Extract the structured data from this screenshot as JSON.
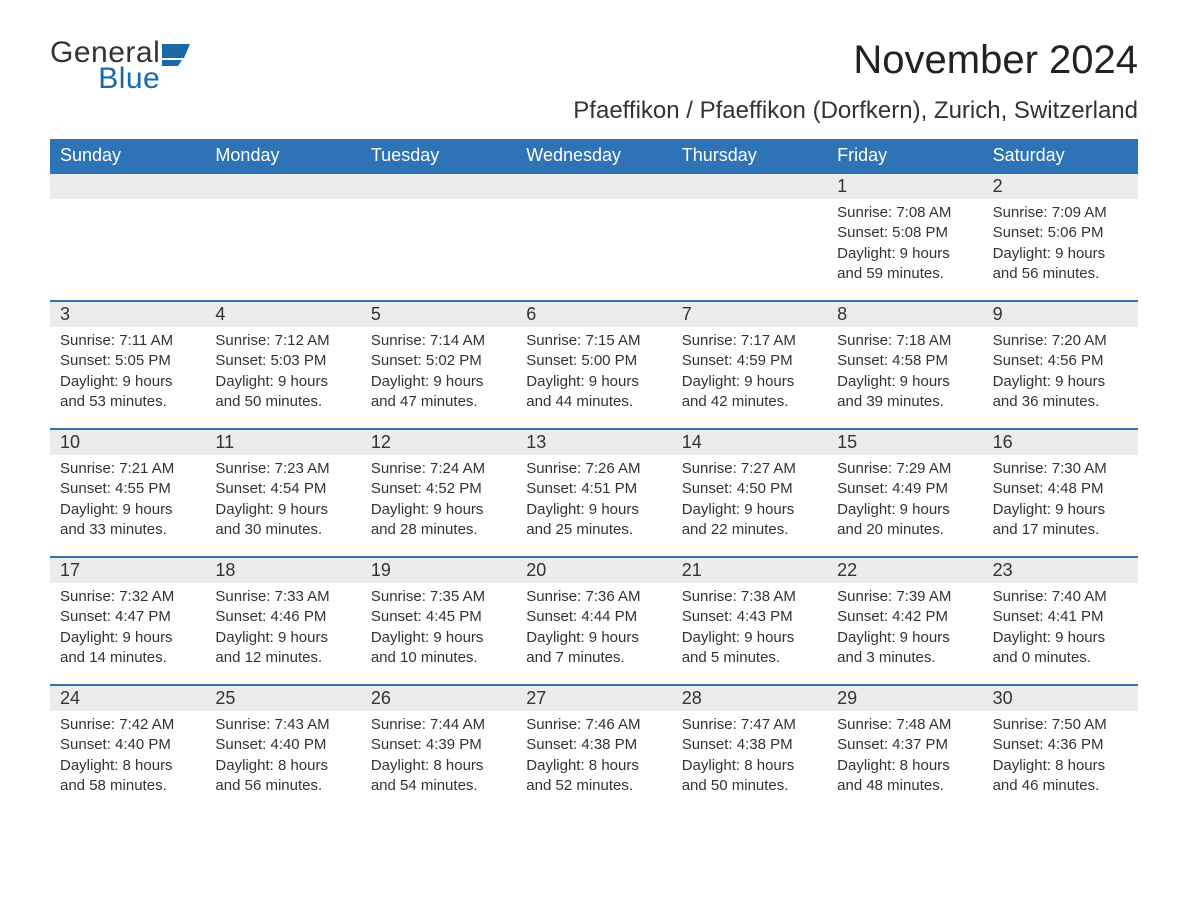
{
  "colors": {
    "header_bg": "#2d73b6",
    "header_text": "#ffffff",
    "strip_bg": "#ececec",
    "strip_border": "#2d73b6",
    "body_text": "#333333",
    "logo_blue": "#1a69aa",
    "background": "#ffffff"
  },
  "typography": {
    "title_fontsize": 40,
    "location_fontsize": 24,
    "weekday_fontsize": 18,
    "date_fontsize": 18,
    "detail_fontsize": 15,
    "font_family": "Arial"
  },
  "logo": {
    "top": "General",
    "bottom": "Blue"
  },
  "title": "November 2024",
  "location": "Pfaeffikon / Pfaeffikon (Dorfkern), Zurich, Switzerland",
  "weekdays": [
    "Sunday",
    "Monday",
    "Tuesday",
    "Wednesday",
    "Thursday",
    "Friday",
    "Saturday"
  ],
  "weeks": [
    {
      "days": [
        {
          "date": "",
          "sunrise": "",
          "sunset": "",
          "daylight": ""
        },
        {
          "date": "",
          "sunrise": "",
          "sunset": "",
          "daylight": ""
        },
        {
          "date": "",
          "sunrise": "",
          "sunset": "",
          "daylight": ""
        },
        {
          "date": "",
          "sunrise": "",
          "sunset": "",
          "daylight": ""
        },
        {
          "date": "",
          "sunrise": "",
          "sunset": "",
          "daylight": ""
        },
        {
          "date": "1",
          "sunrise": "Sunrise: 7:08 AM",
          "sunset": "Sunset: 5:08 PM",
          "daylight": "Daylight: 9 hours and 59 minutes."
        },
        {
          "date": "2",
          "sunrise": "Sunrise: 7:09 AM",
          "sunset": "Sunset: 5:06 PM",
          "daylight": "Daylight: 9 hours and 56 minutes."
        }
      ]
    },
    {
      "days": [
        {
          "date": "3",
          "sunrise": "Sunrise: 7:11 AM",
          "sunset": "Sunset: 5:05 PM",
          "daylight": "Daylight: 9 hours and 53 minutes."
        },
        {
          "date": "4",
          "sunrise": "Sunrise: 7:12 AM",
          "sunset": "Sunset: 5:03 PM",
          "daylight": "Daylight: 9 hours and 50 minutes."
        },
        {
          "date": "5",
          "sunrise": "Sunrise: 7:14 AM",
          "sunset": "Sunset: 5:02 PM",
          "daylight": "Daylight: 9 hours and 47 minutes."
        },
        {
          "date": "6",
          "sunrise": "Sunrise: 7:15 AM",
          "sunset": "Sunset: 5:00 PM",
          "daylight": "Daylight: 9 hours and 44 minutes."
        },
        {
          "date": "7",
          "sunrise": "Sunrise: 7:17 AM",
          "sunset": "Sunset: 4:59 PM",
          "daylight": "Daylight: 9 hours and 42 minutes."
        },
        {
          "date": "8",
          "sunrise": "Sunrise: 7:18 AM",
          "sunset": "Sunset: 4:58 PM",
          "daylight": "Daylight: 9 hours and 39 minutes."
        },
        {
          "date": "9",
          "sunrise": "Sunrise: 7:20 AM",
          "sunset": "Sunset: 4:56 PM",
          "daylight": "Daylight: 9 hours and 36 minutes."
        }
      ]
    },
    {
      "days": [
        {
          "date": "10",
          "sunrise": "Sunrise: 7:21 AM",
          "sunset": "Sunset: 4:55 PM",
          "daylight": "Daylight: 9 hours and 33 minutes."
        },
        {
          "date": "11",
          "sunrise": "Sunrise: 7:23 AM",
          "sunset": "Sunset: 4:54 PM",
          "daylight": "Daylight: 9 hours and 30 minutes."
        },
        {
          "date": "12",
          "sunrise": "Sunrise: 7:24 AM",
          "sunset": "Sunset: 4:52 PM",
          "daylight": "Daylight: 9 hours and 28 minutes."
        },
        {
          "date": "13",
          "sunrise": "Sunrise: 7:26 AM",
          "sunset": "Sunset: 4:51 PM",
          "daylight": "Daylight: 9 hours and 25 minutes."
        },
        {
          "date": "14",
          "sunrise": "Sunrise: 7:27 AM",
          "sunset": "Sunset: 4:50 PM",
          "daylight": "Daylight: 9 hours and 22 minutes."
        },
        {
          "date": "15",
          "sunrise": "Sunrise: 7:29 AM",
          "sunset": "Sunset: 4:49 PM",
          "daylight": "Daylight: 9 hours and 20 minutes."
        },
        {
          "date": "16",
          "sunrise": "Sunrise: 7:30 AM",
          "sunset": "Sunset: 4:48 PM",
          "daylight": "Daylight: 9 hours and 17 minutes."
        }
      ]
    },
    {
      "days": [
        {
          "date": "17",
          "sunrise": "Sunrise: 7:32 AM",
          "sunset": "Sunset: 4:47 PM",
          "daylight": "Daylight: 9 hours and 14 minutes."
        },
        {
          "date": "18",
          "sunrise": "Sunrise: 7:33 AM",
          "sunset": "Sunset: 4:46 PM",
          "daylight": "Daylight: 9 hours and 12 minutes."
        },
        {
          "date": "19",
          "sunrise": "Sunrise: 7:35 AM",
          "sunset": "Sunset: 4:45 PM",
          "daylight": "Daylight: 9 hours and 10 minutes."
        },
        {
          "date": "20",
          "sunrise": "Sunrise: 7:36 AM",
          "sunset": "Sunset: 4:44 PM",
          "daylight": "Daylight: 9 hours and 7 minutes."
        },
        {
          "date": "21",
          "sunrise": "Sunrise: 7:38 AM",
          "sunset": "Sunset: 4:43 PM",
          "daylight": "Daylight: 9 hours and 5 minutes."
        },
        {
          "date": "22",
          "sunrise": "Sunrise: 7:39 AM",
          "sunset": "Sunset: 4:42 PM",
          "daylight": "Daylight: 9 hours and 3 minutes."
        },
        {
          "date": "23",
          "sunrise": "Sunrise: 7:40 AM",
          "sunset": "Sunset: 4:41 PM",
          "daylight": "Daylight: 9 hours and 0 minutes."
        }
      ]
    },
    {
      "days": [
        {
          "date": "24",
          "sunrise": "Sunrise: 7:42 AM",
          "sunset": "Sunset: 4:40 PM",
          "daylight": "Daylight: 8 hours and 58 minutes."
        },
        {
          "date": "25",
          "sunrise": "Sunrise: 7:43 AM",
          "sunset": "Sunset: 4:40 PM",
          "daylight": "Daylight: 8 hours and 56 minutes."
        },
        {
          "date": "26",
          "sunrise": "Sunrise: 7:44 AM",
          "sunset": "Sunset: 4:39 PM",
          "daylight": "Daylight: 8 hours and 54 minutes."
        },
        {
          "date": "27",
          "sunrise": "Sunrise: 7:46 AM",
          "sunset": "Sunset: 4:38 PM",
          "daylight": "Daylight: 8 hours and 52 minutes."
        },
        {
          "date": "28",
          "sunrise": "Sunrise: 7:47 AM",
          "sunset": "Sunset: 4:38 PM",
          "daylight": "Daylight: 8 hours and 50 minutes."
        },
        {
          "date": "29",
          "sunrise": "Sunrise: 7:48 AM",
          "sunset": "Sunset: 4:37 PM",
          "daylight": "Daylight: 8 hours and 48 minutes."
        },
        {
          "date": "30",
          "sunrise": "Sunrise: 7:50 AM",
          "sunset": "Sunset: 4:36 PM",
          "daylight": "Daylight: 8 hours and 46 minutes."
        }
      ]
    }
  ]
}
